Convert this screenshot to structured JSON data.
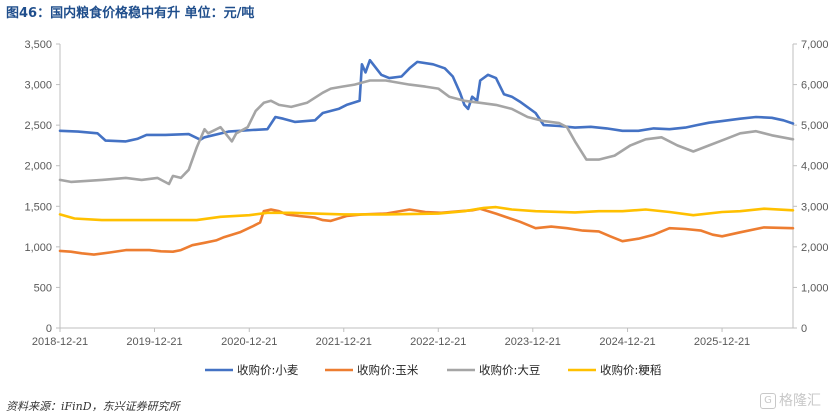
{
  "header": {
    "title": "图46：国内粮食价格稳中有升  单位：元/吨"
  },
  "footer": {
    "source": "资料来源：iFinD，东兴证券研究所",
    "watermark": "格隆汇"
  },
  "chart_data": {
    "type": "line",
    "title": "图46：国内粮食价格稳中有升  单位：元/吨",
    "x_start": "2018-12-21",
    "x_end": "2026-09-21",
    "x_ticks": [
      "2018-12-21",
      "2019-12-21",
      "2020-12-21",
      "2021-12-21",
      "2022-12-21",
      "2023-12-21",
      "2024-12-21",
      "2025-12-21"
    ],
    "ylim_left": [
      0,
      3500
    ],
    "yticks_left": [
      "0",
      "500",
      "1,000",
      "1,500",
      "2,000",
      "2,500",
      "3,000",
      "3,500"
    ],
    "ylim_right": [
      0,
      7000
    ],
    "yticks_right": [
      "0",
      "1,000",
      "2,000",
      "3,000",
      "4,000",
      "5,000",
      "6,000",
      "7,000"
    ],
    "grid": false,
    "legend_position": "bottom",
    "series": [
      {
        "name": "收购价:小麦",
        "axis": "left",
        "color": "#4472c4",
        "points": [
          [
            "2018-12-21",
            2430
          ],
          [
            "2019-03-01",
            2420
          ],
          [
            "2019-05-15",
            2400
          ],
          [
            "2019-06-15",
            2310
          ],
          [
            "2019-09-01",
            2300
          ],
          [
            "2019-10-15",
            2330
          ],
          [
            "2019-11-20",
            2380
          ],
          [
            "2020-02-01",
            2380
          ],
          [
            "2020-05-01",
            2390
          ],
          [
            "2020-06-15",
            2320
          ],
          [
            "2020-07-01",
            2350
          ],
          [
            "2020-10-01",
            2420
          ],
          [
            "2021-01-01",
            2440
          ],
          [
            "2021-03-01",
            2450
          ],
          [
            "2021-04-01",
            2600
          ],
          [
            "2021-05-01",
            2580
          ],
          [
            "2021-06-15",
            2540
          ],
          [
            "2021-09-01",
            2560
          ],
          [
            "2021-10-01",
            2650
          ],
          [
            "2021-12-01",
            2700
          ],
          [
            "2022-01-01",
            2750
          ],
          [
            "2022-02-20",
            2800
          ],
          [
            "2022-03-01",
            3250
          ],
          [
            "2022-03-15",
            3150
          ],
          [
            "2022-04-01",
            3300
          ],
          [
            "2022-05-15",
            3120
          ],
          [
            "2022-06-15",
            3080
          ],
          [
            "2022-08-01",
            3100
          ],
          [
            "2022-09-01",
            3200
          ],
          [
            "2022-10-01",
            3280
          ],
          [
            "2022-12-01",
            3250
          ],
          [
            "2023-01-15",
            3200
          ],
          [
            "2023-02-15",
            3100
          ],
          [
            "2023-03-15",
            2900
          ],
          [
            "2023-04-01",
            2750
          ],
          [
            "2023-04-15",
            2700
          ],
          [
            "2023-05-01",
            2850
          ],
          [
            "2023-05-20",
            2800
          ],
          [
            "2023-06-01",
            3050
          ],
          [
            "2023-07-01",
            3120
          ],
          [
            "2023-08-01",
            3080
          ],
          [
            "2023-09-01",
            2880
          ],
          [
            "2023-10-01",
            2850
          ],
          [
            "2023-11-01",
            2790
          ],
          [
            "2024-01-01",
            2650
          ],
          [
            "2024-02-01",
            2500
          ],
          [
            "2024-04-01",
            2490
          ],
          [
            "2024-06-01",
            2470
          ],
          [
            "2024-08-01",
            2480
          ],
          [
            "2024-10-01",
            2460
          ],
          [
            "2024-12-01",
            2430
          ],
          [
            "2025-02-01",
            2430
          ],
          [
            "2025-04-01",
            2460
          ],
          [
            "2025-06-01",
            2450
          ],
          [
            "2025-08-01",
            2470
          ],
          [
            "2025-09-15",
            2500
          ],
          [
            "2025-11-01",
            2530
          ],
          [
            "2025-12-21",
            2550
          ],
          [
            "2026-03-01",
            2580
          ],
          [
            "2026-05-01",
            2600
          ],
          [
            "2026-07-01",
            2590
          ],
          [
            "2026-08-15",
            2560
          ],
          [
            "2026-09-21",
            2520
          ]
        ]
      },
      {
        "name": "收购价:玉米",
        "axis": "left",
        "color": "#ed7d31",
        "points": [
          [
            "2018-12-21",
            950
          ],
          [
            "2019-02-01",
            940
          ],
          [
            "2019-03-15",
            920
          ],
          [
            "2019-05-01",
            905
          ],
          [
            "2019-07-01",
            930
          ],
          [
            "2019-09-01",
            960
          ],
          [
            "2019-12-01",
            960
          ],
          [
            "2020-01-15",
            945
          ],
          [
            "2020-03-01",
            940
          ],
          [
            "2020-04-01",
            960
          ],
          [
            "2020-05-15",
            1020
          ],
          [
            "2020-07-01",
            1050
          ],
          [
            "2020-08-15",
            1080
          ],
          [
            "2020-09-15",
            1120
          ],
          [
            "2020-10-15",
            1150
          ],
          [
            "2020-11-15",
            1180
          ],
          [
            "2021-01-01",
            1250
          ],
          [
            "2021-02-01",
            1300
          ],
          [
            "2021-02-15",
            1440
          ],
          [
            "2021-03-15",
            1460
          ],
          [
            "2021-04-15",
            1440
          ],
          [
            "2021-05-15",
            1400
          ],
          [
            "2021-07-01",
            1380
          ],
          [
            "2021-09-01",
            1360
          ],
          [
            "2021-10-01",
            1330
          ],
          [
            "2021-11-01",
            1320
          ],
          [
            "2022-01-01",
            1380
          ],
          [
            "2022-03-01",
            1400
          ],
          [
            "2022-06-01",
            1410
          ],
          [
            "2022-09-01",
            1460
          ],
          [
            "2022-11-01",
            1430
          ],
          [
            "2023-01-01",
            1420
          ],
          [
            "2023-03-15",
            1440
          ],
          [
            "2023-05-01",
            1450
          ],
          [
            "2023-06-01",
            1470
          ],
          [
            "2023-08-01",
            1410
          ],
          [
            "2023-09-15",
            1360
          ],
          [
            "2023-11-01",
            1310
          ],
          [
            "2024-01-01",
            1230
          ],
          [
            "2024-03-01",
            1250
          ],
          [
            "2024-05-01",
            1230
          ],
          [
            "2024-07-01",
            1200
          ],
          [
            "2024-09-01",
            1190
          ],
          [
            "2024-10-15",
            1130
          ],
          [
            "2024-12-01",
            1070
          ],
          [
            "2025-02-01",
            1100
          ],
          [
            "2025-04-01",
            1150
          ],
          [
            "2025-06-01",
            1230
          ],
          [
            "2025-08-01",
            1220
          ],
          [
            "2025-10-01",
            1200
          ],
          [
            "2025-11-15",
            1150
          ],
          [
            "2025-12-21",
            1130
          ],
          [
            "2026-03-01",
            1180
          ],
          [
            "2026-06-01",
            1240
          ],
          [
            "2026-09-21",
            1230
          ]
        ]
      },
      {
        "name": "收购价:大豆",
        "axis": "right",
        "color": "#a5a5a5",
        "points": [
          [
            "2018-12-21",
            3650
          ],
          [
            "2019-02-01",
            3600
          ],
          [
            "2019-06-01",
            3650
          ],
          [
            "2019-09-01",
            3700
          ],
          [
            "2019-11-01",
            3650
          ],
          [
            "2020-01-01",
            3700
          ],
          [
            "2020-02-15",
            3550
          ],
          [
            "2020-03-01",
            3750
          ],
          [
            "2020-04-01",
            3700
          ],
          [
            "2020-05-01",
            3900
          ],
          [
            "2020-06-01",
            4450
          ],
          [
            "2020-07-01",
            4900
          ],
          [
            "2020-07-15",
            4800
          ],
          [
            "2020-09-01",
            4950
          ],
          [
            "2020-10-15",
            4600
          ],
          [
            "2020-11-01",
            4800
          ],
          [
            "2020-12-15",
            4950
          ],
          [
            "2021-01-15",
            5350
          ],
          [
            "2021-02-15",
            5550
          ],
          [
            "2021-03-15",
            5600
          ],
          [
            "2021-04-15",
            5500
          ],
          [
            "2021-06-01",
            5450
          ],
          [
            "2021-08-01",
            5550
          ],
          [
            "2021-10-01",
            5800
          ],
          [
            "2021-11-01",
            5900
          ],
          [
            "2021-12-15",
            5950
          ],
          [
            "2022-02-01",
            6000
          ],
          [
            "2022-04-01",
            6100
          ],
          [
            "2022-06-01",
            6100
          ],
          [
            "2022-09-01",
            6000
          ],
          [
            "2022-11-01",
            5950
          ],
          [
            "2022-12-21",
            5900
          ],
          [
            "2023-02-01",
            5700
          ],
          [
            "2023-04-01",
            5600
          ],
          [
            "2023-06-01",
            5550
          ],
          [
            "2023-08-01",
            5500
          ],
          [
            "2023-10-01",
            5400
          ],
          [
            "2023-12-01",
            5200
          ],
          [
            "2024-02-01",
            5100
          ],
          [
            "2024-04-01",
            5050
          ],
          [
            "2024-05-01",
            4950
          ],
          [
            "2024-06-01",
            4600
          ],
          [
            "2024-07-15",
            4150
          ],
          [
            "2024-09-01",
            4150
          ],
          [
            "2024-11-01",
            4250
          ],
          [
            "2025-01-01",
            4500
          ],
          [
            "2025-03-01",
            4650
          ],
          [
            "2025-05-01",
            4700
          ],
          [
            "2025-07-01",
            4500
          ],
          [
            "2025-09-01",
            4350
          ],
          [
            "2025-11-01",
            4500
          ],
          [
            "2026-01-01",
            4650
          ],
          [
            "2026-03-01",
            4800
          ],
          [
            "2026-05-01",
            4850
          ],
          [
            "2026-07-01",
            4750
          ],
          [
            "2026-09-21",
            4650
          ]
        ]
      },
      {
        "name": "收购价:粳稻",
        "axis": "right",
        "color": "#ffc000",
        "points": [
          [
            "2018-12-21",
            2800
          ],
          [
            "2019-02-15",
            2700
          ],
          [
            "2019-06-01",
            2660
          ],
          [
            "2019-12-01",
            2660
          ],
          [
            "2020-06-01",
            2660
          ],
          [
            "2020-09-01",
            2740
          ],
          [
            "2020-12-21",
            2780
          ],
          [
            "2021-03-01",
            2840
          ],
          [
            "2021-06-01",
            2840
          ],
          [
            "2021-12-21",
            2800
          ],
          [
            "2022-06-01",
            2800
          ],
          [
            "2022-12-21",
            2820
          ],
          [
            "2023-04-01",
            2880
          ],
          [
            "2023-06-15",
            2960
          ],
          [
            "2023-08-01",
            2980
          ],
          [
            "2023-10-01",
            2920
          ],
          [
            "2024-01-01",
            2880
          ],
          [
            "2024-06-01",
            2850
          ],
          [
            "2024-09-01",
            2880
          ],
          [
            "2024-12-01",
            2880
          ],
          [
            "2025-03-01",
            2920
          ],
          [
            "2025-06-01",
            2860
          ],
          [
            "2025-09-01",
            2780
          ],
          [
            "2025-12-21",
            2860
          ],
          [
            "2026-03-01",
            2880
          ],
          [
            "2026-06-01",
            2940
          ],
          [
            "2026-09-21",
            2900
          ]
        ]
      }
    ]
  }
}
